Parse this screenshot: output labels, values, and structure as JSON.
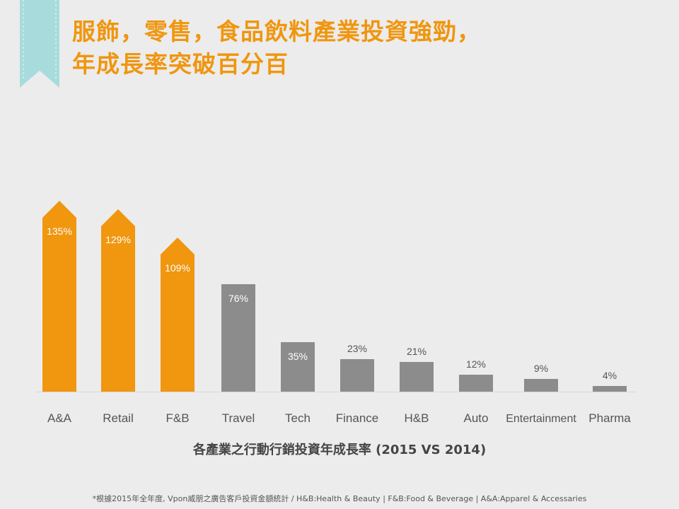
{
  "slide": {
    "title_line1": "服飾，零售，食品飲料產業投資強勁，",
    "title_line2": "年成長率突破百分百",
    "footnote": "*根據2015年全年度, Vpon威朋之廣告客戶投資金額統計 / H&B:Health & Beauty | F&B:Food & Beverage | A&A:Apparel & Accessaries",
    "colors": {
      "background": "#ececec",
      "title": "#f0960f",
      "highlight_bar": "#f0960f",
      "normal_bar": "#8c8c8c",
      "ribbon": "#a8dcdc"
    }
  },
  "chart_data": {
    "type": "bar",
    "title": "各產業之行動行銷投資年成長率 (2015 VS 2014)",
    "categories": [
      "A&A",
      "Retail",
      "F&B",
      "Travel",
      "Tech",
      "Finance",
      "H&B",
      "Auto",
      "Entertainment",
      "Pharma"
    ],
    "values": [
      135,
      129,
      109,
      76,
      35,
      23,
      21,
      12,
      9,
      4
    ],
    "value_labels": [
      "135%",
      "129%",
      "109%",
      "76%",
      "35%",
      "23%",
      "21%",
      "12%",
      "9%",
      "4%"
    ],
    "highlighted": [
      true,
      true,
      true,
      false,
      false,
      false,
      false,
      false,
      false,
      false
    ],
    "ylim": [
      0,
      135
    ],
    "unit": "%",
    "grid": false,
    "legend": "none"
  }
}
